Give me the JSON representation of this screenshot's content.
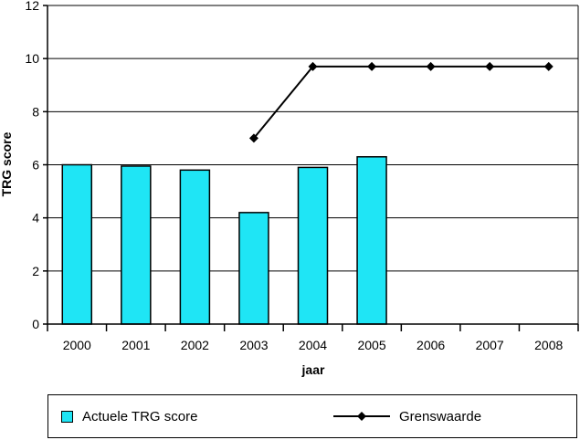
{
  "chart_data": {
    "type": "bar",
    "title": "",
    "xlabel": "jaar",
    "ylabel": "TRG score",
    "categories": [
      "2000",
      "2001",
      "2002",
      "2003",
      "2004",
      "2005",
      "2006",
      "2007",
      "2008"
    ],
    "ylim": [
      0,
      12
    ],
    "yticks": [
      0,
      2,
      4,
      6,
      8,
      10,
      12
    ],
    "grid": true,
    "legend_position": "bottom",
    "series": [
      {
        "name": "Actuele TRG score",
        "type": "bar",
        "color": "#1fe5f5",
        "values": [
          6.0,
          5.95,
          5.8,
          4.2,
          5.9,
          6.3,
          null,
          null,
          null
        ]
      },
      {
        "name": "Grenswaarde",
        "type": "line",
        "marker": "diamond",
        "color": "#000000",
        "values": [
          null,
          null,
          null,
          7.0,
          9.7,
          9.7,
          9.7,
          9.7,
          9.7
        ]
      }
    ]
  },
  "legend": {
    "bar_label": "Actuele TRG score",
    "line_label": "Grenswaarde"
  }
}
